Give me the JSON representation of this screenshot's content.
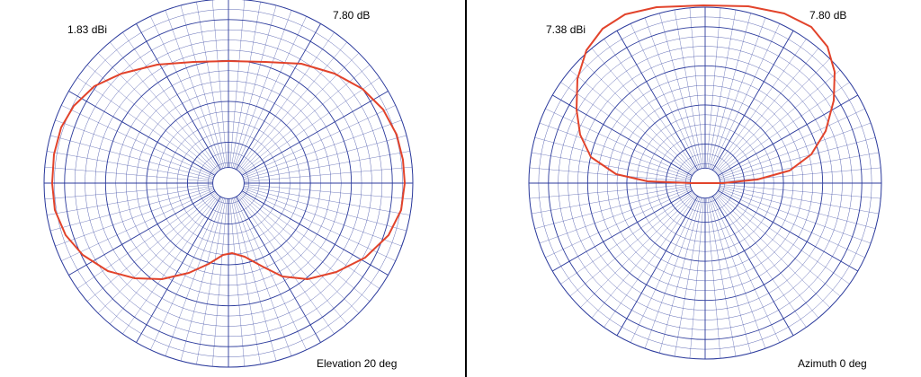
{
  "colors": {
    "grid": "#2b3a9c",
    "trace": "#e2432b",
    "divider": "#000000",
    "background": "#ffffff"
  },
  "left_plot": {
    "gain_label": "1.83 dBi",
    "max_label": "7.80 dB",
    "cut_label": "Elevation 20 deg"
  },
  "right_plot": {
    "gain_label": "7.38 dBi",
    "max_label": "7.80 dB",
    "cut_label": "Azimuth 0 deg"
  }
}
